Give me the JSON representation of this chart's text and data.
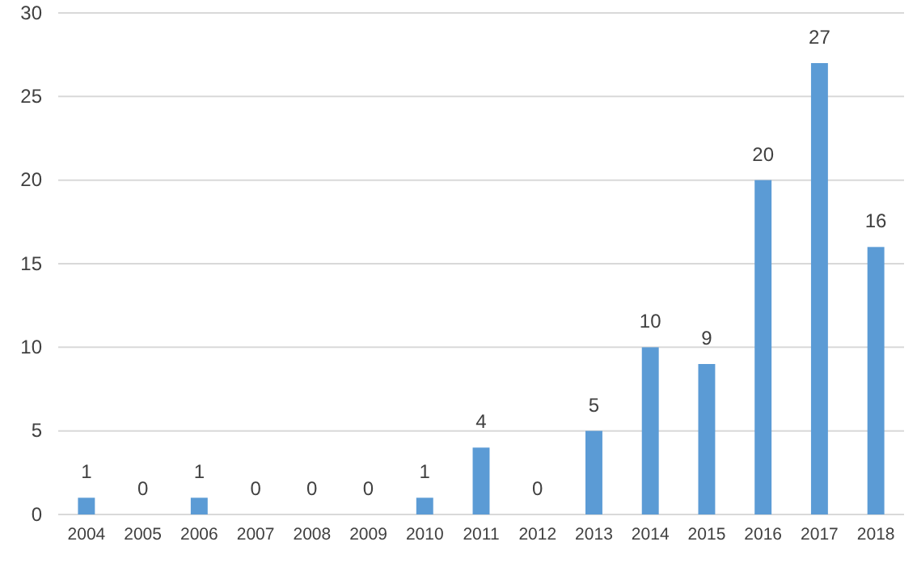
{
  "chart_data": {
    "type": "bar",
    "categories": [
      "2004",
      "2005",
      "2006",
      "2007",
      "2008",
      "2009",
      "2010",
      "2011",
      "2012",
      "2013",
      "2014",
      "2015",
      "2016",
      "2017",
      "2018"
    ],
    "values": [
      1,
      0,
      1,
      0,
      0,
      0,
      1,
      4,
      0,
      5,
      10,
      9,
      20,
      27,
      16
    ],
    "color": "#5b9bd5",
    "ylim": [
      0,
      30
    ],
    "yticks": [
      0,
      5,
      10,
      15,
      20,
      25,
      30
    ],
    "grid": "y",
    "data_labels": true
  }
}
